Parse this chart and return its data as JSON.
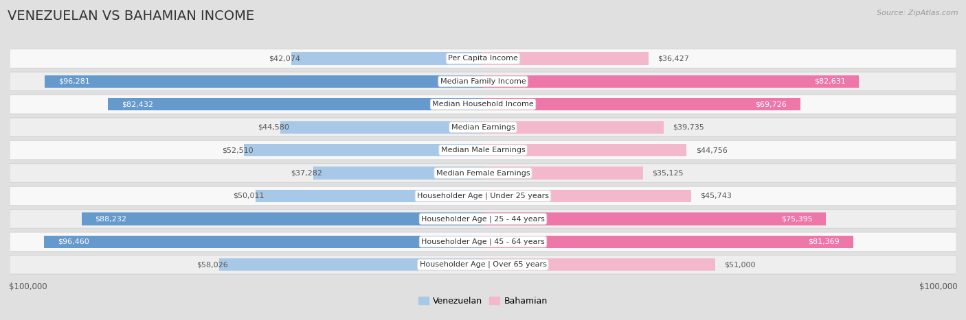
{
  "title": "VENEZUELAN VS BAHAMIAN INCOME",
  "source": "Source: ZipAtlas.com",
  "categories": [
    "Per Capita Income",
    "Median Family Income",
    "Median Household Income",
    "Median Earnings",
    "Median Male Earnings",
    "Median Female Earnings",
    "Householder Age | Under 25 years",
    "Householder Age | 25 - 44 years",
    "Householder Age | 45 - 64 years",
    "Householder Age | Over 65 years"
  ],
  "venezuelan_values": [
    42074,
    96281,
    82432,
    44580,
    52510,
    37282,
    50011,
    88232,
    96460,
    58026
  ],
  "bahamian_values": [
    36427,
    82631,
    69726,
    39735,
    44756,
    35125,
    45743,
    75395,
    81369,
    51000
  ],
  "venezuelan_labels": [
    "$42,074",
    "$96,281",
    "$82,432",
    "$44,580",
    "$52,510",
    "$37,282",
    "$50,011",
    "$88,232",
    "$96,460",
    "$58,026"
  ],
  "bahamian_labels": [
    "$36,427",
    "$82,631",
    "$69,726",
    "$39,735",
    "$44,756",
    "$35,125",
    "$45,743",
    "$75,395",
    "$81,369",
    "$51,000"
  ],
  "venezuelan_color_light": "#a8c8e8",
  "venezuelan_color_dark": "#6699cc",
  "bahamian_color_light": "#f4b8cc",
  "bahamian_color_dark": "#ee77aa",
  "max_value": 100000,
  "xlabel_left": "$100,000",
  "xlabel_right": "$100,000",
  "legend_venezuelan": "Venezuelan",
  "legend_bahamian": "Bahamian",
  "bg_color": "#e0e0e0",
  "row_color_light": "#f8f8f8",
  "row_color_dark": "#eeeeee",
  "title_color": "#333333",
  "source_color": "#999999",
  "label_color_outside": "#555555",
  "label_color_inside": "#ffffff",
  "title_fontsize": 14,
  "label_fontsize": 8,
  "category_fontsize": 8,
  "ven_inside_threshold": 60000,
  "bah_inside_threshold": 65000
}
